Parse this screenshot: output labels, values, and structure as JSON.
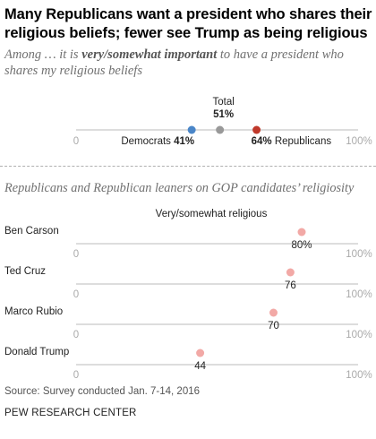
{
  "title": "Many Republicans want a president who shares their religious beliefs; fewer see Trump as being religious",
  "subtitle": {
    "part1": "Among … it is ",
    "emph": "very/somewhat important",
    "part2": " to have a president who shares my religious beliefs"
  },
  "section2_title": "Republicans and Republican leaners on GOP candidates’ religiosity",
  "footer": {
    "source": "Source: Survey conducted Jan. 7-14, 2016",
    "org": "PEW RESEARCH CENTER"
  },
  "colors": {
    "democrats": "#4a86c8",
    "total": "#999999",
    "republicans": "#c0392b",
    "candidate": "#f2a9a6",
    "axis": "#bbbbbb",
    "tick_label": "#aaaaaa"
  },
  "chart_data": [
    {
      "type": "scatter",
      "xlim": [
        0,
        100
      ],
      "tick_labels": [
        "0",
        "100%"
      ],
      "points": [
        {
          "name": "Democrats",
          "value": 41,
          "value_label": "41%"
        },
        {
          "name": "Total",
          "value": 51,
          "value_label": "51%"
        },
        {
          "name": "Republicans",
          "value": 64,
          "value_label": "64%"
        }
      ]
    },
    {
      "type": "scatter",
      "xlim": [
        0,
        100
      ],
      "tick_labels": [
        "0",
        "100%"
      ],
      "series_label": "Very/somewhat religious",
      "rows": [
        {
          "name": "Ben Carson",
          "value": 80,
          "value_label": "80%"
        },
        {
          "name": "Ted Cruz",
          "value": 76,
          "value_label": "76"
        },
        {
          "name": "Marco Rubio",
          "value": 70,
          "value_label": "70"
        },
        {
          "name": "Donald Trump",
          "value": 44,
          "value_label": "44"
        }
      ]
    }
  ]
}
